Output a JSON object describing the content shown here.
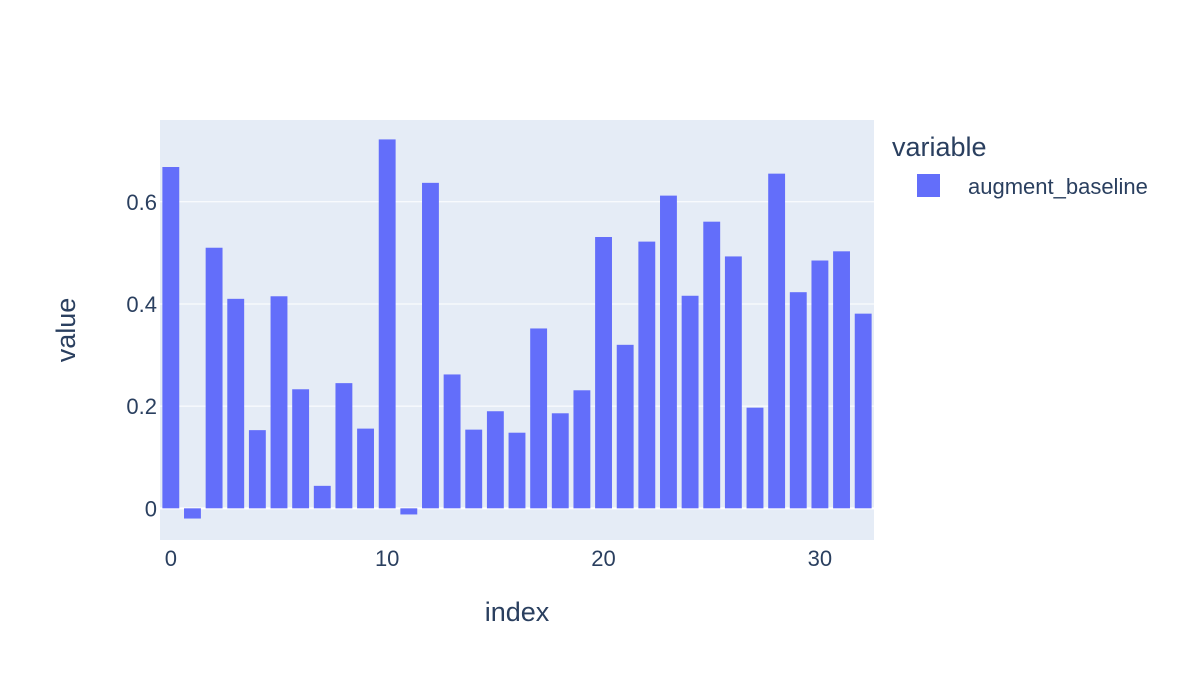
{
  "chart_data": {
    "type": "bar",
    "x": [
      0,
      1,
      2,
      3,
      4,
      5,
      6,
      7,
      8,
      9,
      10,
      11,
      12,
      13,
      14,
      15,
      16,
      17,
      18,
      19,
      20,
      21,
      22,
      23,
      24,
      25,
      26,
      27,
      28,
      29,
      30,
      31,
      32
    ],
    "values": [
      0.668,
      -0.02,
      0.51,
      0.41,
      0.153,
      0.415,
      0.233,
      0.044,
      0.245,
      0.156,
      0.722,
      -0.012,
      0.637,
      0.262,
      0.154,
      0.19,
      0.148,
      0.352,
      0.186,
      0.231,
      0.531,
      0.32,
      0.522,
      0.612,
      0.416,
      0.561,
      0.493,
      0.197,
      0.655,
      0.423,
      0.485,
      0.503,
      0.381
    ],
    "series": [
      {
        "name": "augment_baseline",
        "color": "#636efa"
      }
    ],
    "xlabel": "index",
    "ylabel": "value",
    "x_ticks": [
      0,
      10,
      20,
      30
    ],
    "x_tick_labels": [
      "0",
      "10",
      "20",
      "30"
    ],
    "y_ticks": [
      0,
      0.2,
      0.4,
      0.6
    ],
    "y_tick_labels": [
      "0",
      "0.2",
      "0.4",
      "0.6"
    ],
    "xlim": [
      -0.5,
      32.5
    ],
    "ylim": [
      -0.062,
      0.76
    ],
    "legend": {
      "title": "variable",
      "placement": "top-right"
    },
    "grid": true,
    "colors": {
      "plot_bg": "#e5ecf6",
      "grid": "#ffffff",
      "bar": "#636efa",
      "text": "#2a3f5f"
    }
  }
}
